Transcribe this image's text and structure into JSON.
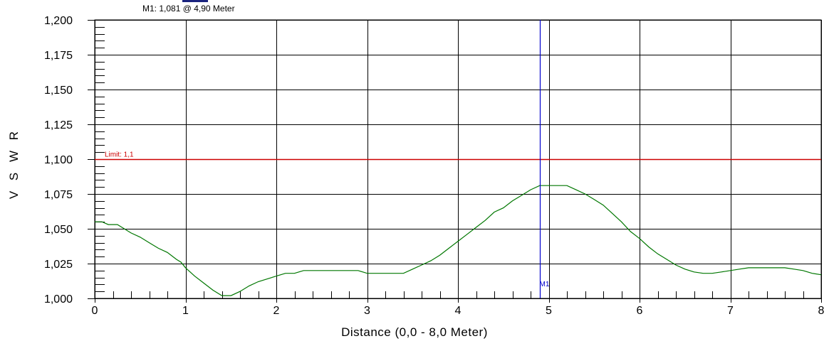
{
  "marker_readout": "M1: 1,081  @ 4,90 Meter",
  "chart_data": {
    "type": "line",
    "xlabel": "Distance (0,0 - 8,0 Meter)",
    "ylabel": "V S W R",
    "xlim": [
      0,
      8
    ],
    "ylim": [
      1.0,
      1.2
    ],
    "x_ticks": [
      "0",
      "1",
      "2",
      "3",
      "4",
      "5",
      "6",
      "7",
      "8"
    ],
    "y_ticks": [
      "1,000",
      "1,025",
      "1,050",
      "1,075",
      "1,100",
      "1,125",
      "1,150",
      "1,175",
      "1,200"
    ],
    "grid": true,
    "limit": {
      "value": 1.1,
      "label": "Limit: 1,1",
      "color": "#cc0000"
    },
    "marker": {
      "label": "M1",
      "x": 4.9,
      "y": 1.081,
      "color": "#0000cc"
    },
    "series": [
      {
        "color": "#007700",
        "x": [
          0.0,
          0.08,
          0.15,
          0.25,
          0.4,
          0.5,
          0.6,
          0.7,
          0.8,
          0.9,
          0.95,
          1.0,
          1.1,
          1.2,
          1.3,
          1.4,
          1.5,
          1.6,
          1.7,
          1.8,
          1.9,
          2.0,
          2.1,
          2.2,
          2.3,
          2.4,
          2.5,
          2.6,
          2.7,
          2.8,
          2.9,
          3.0,
          3.1,
          3.2,
          3.3,
          3.4,
          3.5,
          3.6,
          3.7,
          3.8,
          3.9,
          4.0,
          4.1,
          4.2,
          4.3,
          4.4,
          4.5,
          4.6,
          4.7,
          4.8,
          4.9,
          5.0,
          5.1,
          5.2,
          5.3,
          5.4,
          5.5,
          5.6,
          5.7,
          5.8,
          5.9,
          6.0,
          6.1,
          6.2,
          6.3,
          6.4,
          6.5,
          6.6,
          6.7,
          6.8,
          6.9,
          7.0,
          7.1,
          7.2,
          7.3,
          7.4,
          7.5,
          7.6,
          7.7,
          7.8,
          7.9,
          8.0
        ],
        "y": [
          1.055,
          1.055,
          1.053,
          1.053,
          1.047,
          1.044,
          1.04,
          1.036,
          1.033,
          1.028,
          1.026,
          1.022,
          1.016,
          1.011,
          1.006,
          1.002,
          1.002,
          1.005,
          1.009,
          1.012,
          1.014,
          1.016,
          1.018,
          1.018,
          1.02,
          1.02,
          1.02,
          1.02,
          1.02,
          1.02,
          1.02,
          1.018,
          1.018,
          1.018,
          1.018,
          1.018,
          1.021,
          1.024,
          1.027,
          1.031,
          1.036,
          1.041,
          1.046,
          1.051,
          1.056,
          1.062,
          1.065,
          1.07,
          1.074,
          1.078,
          1.081,
          1.081,
          1.081,
          1.081,
          1.078,
          1.075,
          1.071,
          1.067,
          1.061,
          1.055,
          1.048,
          1.043,
          1.037,
          1.032,
          1.028,
          1.024,
          1.021,
          1.019,
          1.018,
          1.018,
          1.019,
          1.02,
          1.021,
          1.022,
          1.022,
          1.022,
          1.022,
          1.022,
          1.021,
          1.02,
          1.018,
          1.017
        ]
      }
    ]
  }
}
